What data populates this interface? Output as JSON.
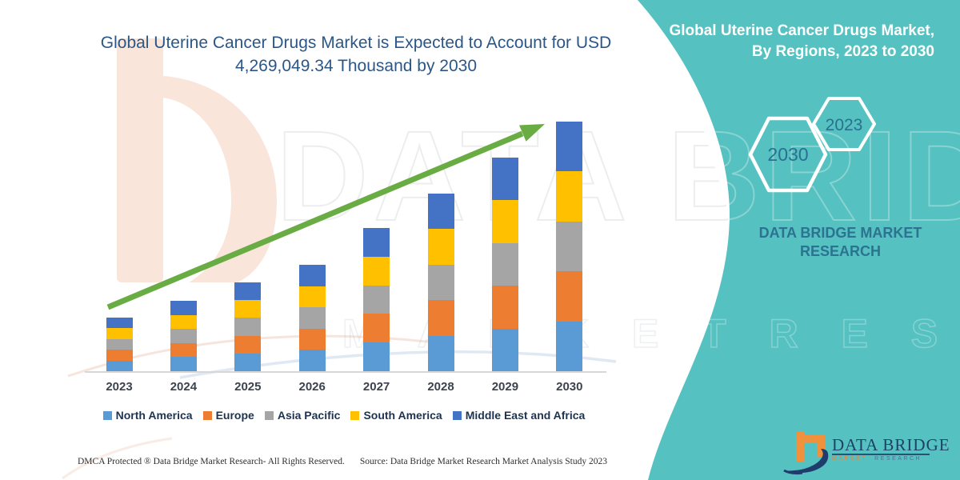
{
  "header": {
    "title_line1": "Global Uterine Cancer Drugs Market is Expected to Account for USD",
    "title_line2": "4,269,049.34 Thousand by 2030"
  },
  "right_panel": {
    "background_color": "#56C1C1",
    "title_line1": "Global Uterine Cancer Drugs Market,",
    "title_line2": "By Regions, 2023 to 2030",
    "hexagon_left_label": "2030",
    "hexagon_right_label": "2023",
    "brand_line1": "DATA BRIDGE MARKET",
    "brand_line2": "RESEARCH",
    "logo": {
      "wordmark": "DATA BRIDGE",
      "sub_left": "MARKET",
      "sub_right": "RESEARCH"
    }
  },
  "watermark": {
    "big_text": "DATA BRIDGE",
    "sub_text": "M A R K E T  R E S E A R C H"
  },
  "footer": {
    "dmca": "DMCA Protected ® Data Bridge Market Research-  All Rights Reserved.",
    "source": "Source: Data Bridge Market Research  Market Analysis Study 2023"
  },
  "chart_data": {
    "type": "bar",
    "stacked": true,
    "unit": "USD Thousand",
    "title": "Global Uterine Cancer Drugs Market is Expected to Account for USD 4,269,049.34 Thousand by 2030",
    "categories": [
      "2023",
      "2024",
      "2025",
      "2026",
      "2027",
      "2028",
      "2029",
      "2030"
    ],
    "series": [
      {
        "name": "North America",
        "color": "#5B9BD5",
        "values": [
          183360,
          240820,
          303780,
          363980,
          489860,
          607550,
          730700,
          853809.87
        ]
      },
      {
        "name": "Europe",
        "color": "#ED7D31",
        "values": [
          183360,
          240820,
          303780,
          363980,
          489860,
          607550,
          730700,
          853809.87
        ]
      },
      {
        "name": "Asia Pacific",
        "color": "#A5A5A5",
        "values": [
          183360,
          240820,
          303780,
          363980,
          489860,
          607550,
          730700,
          853809.87
        ]
      },
      {
        "name": "South America",
        "color": "#FFC000",
        "values": [
          183360,
          240820,
          303780,
          363980,
          489860,
          607550,
          730700,
          853809.87
        ]
      },
      {
        "name": "Middle East and Africa",
        "color": "#4472C4",
        "values": [
          183360,
          240820,
          303780,
          363980,
          489860,
          607550,
          730700,
          853809.87
        ]
      }
    ],
    "totals_estimated": [
      916800,
      1204100,
      1518900,
      1819900,
      2449300,
      3037750,
      3653500,
      4269049.34
    ],
    "highlight_total_2030": "4,269,049.34",
    "ylim": [
      0,
      4500000
    ],
    "grid": false,
    "legend_position": "bottom",
    "trend_arrow": true,
    "trend_arrow_color": "#6AAC44",
    "axis_color": "#D7D7D7"
  }
}
